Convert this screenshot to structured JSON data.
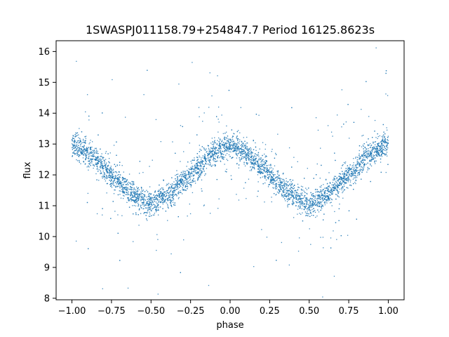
{
  "chart_data": {
    "type": "scatter",
    "title": "1SWASPJ011158.79+254847.7 Period 16125.8623s",
    "xlabel": "phase",
    "ylabel": "flux",
    "xlim": [
      -1.1,
      1.1
    ],
    "ylim": [
      7.95,
      16.35
    ],
    "xticks": [
      -1.0,
      -0.75,
      -0.5,
      -0.25,
      0.0,
      0.25,
      0.5,
      0.75,
      1.0
    ],
    "xtick_labels": [
      "−1.00",
      "−0.75",
      "−0.50",
      "−0.25",
      "0.00",
      "0.25",
      "0.50",
      "0.75",
      "1.00"
    ],
    "yticks": [
      8,
      9,
      10,
      11,
      12,
      13,
      14,
      15,
      16
    ],
    "ytick_labels": [
      "8",
      "9",
      "10",
      "11",
      "12",
      "13",
      "14",
      "15",
      "16"
    ],
    "grid": false,
    "marker_color": "#1f77b4",
    "series": [
      {
        "x": [
          -1.0,
          -0.875,
          -0.75,
          -0.625,
          -0.5,
          -0.375,
          -0.25,
          -0.125,
          0.0,
          0.125,
          0.25,
          0.375,
          0.5,
          0.625,
          0.75,
          0.875,
          1.0
        ],
        "y": [
          13.0,
          12.6,
          12.0,
          11.4,
          11.05,
          11.4,
          12.0,
          12.65,
          13.0,
          12.6,
          12.0,
          11.4,
          11.05,
          11.4,
          12.0,
          12.65,
          13.0
        ]
      }
    ]
  }
}
